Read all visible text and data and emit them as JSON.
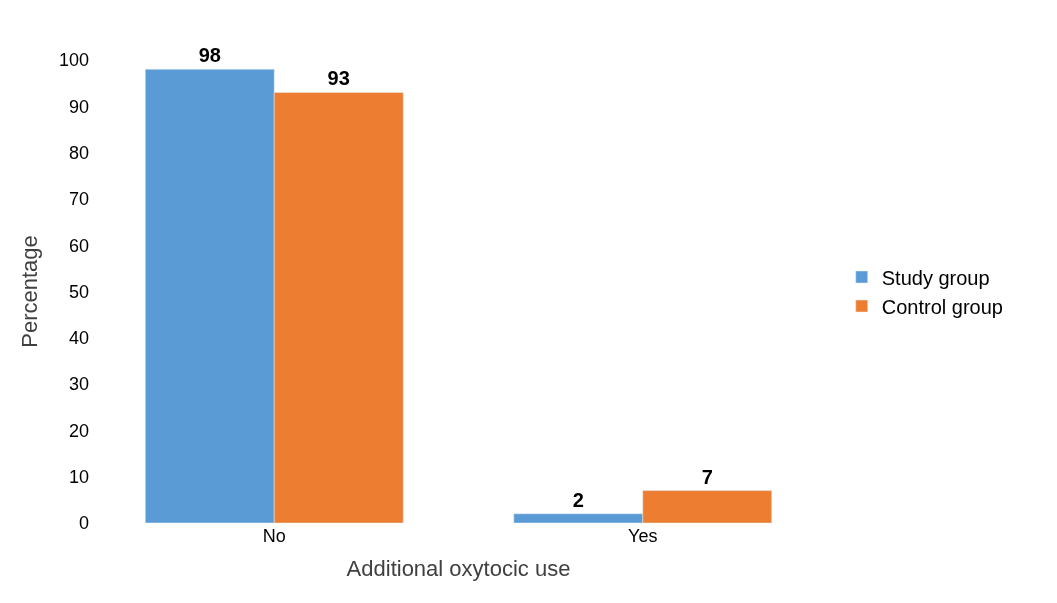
{
  "chart_data": {
    "type": "bar",
    "xlabel": "Additional oxytocic use",
    "ylabel": "Percentage",
    "categories": [
      "No",
      "Yes"
    ],
    "series": [
      {
        "name": "Study group",
        "color": "#5b9bd5",
        "values": [
          98,
          2
        ]
      },
      {
        "name": "Control group",
        "color": "#ed7d31",
        "values": [
          93,
          7
        ]
      }
    ],
    "ylim": [
      0,
      100
    ],
    "yticks": [
      0,
      10,
      20,
      30,
      40,
      50,
      60,
      70,
      80,
      90,
      100
    ],
    "legend": "right",
    "data_labels": true
  }
}
